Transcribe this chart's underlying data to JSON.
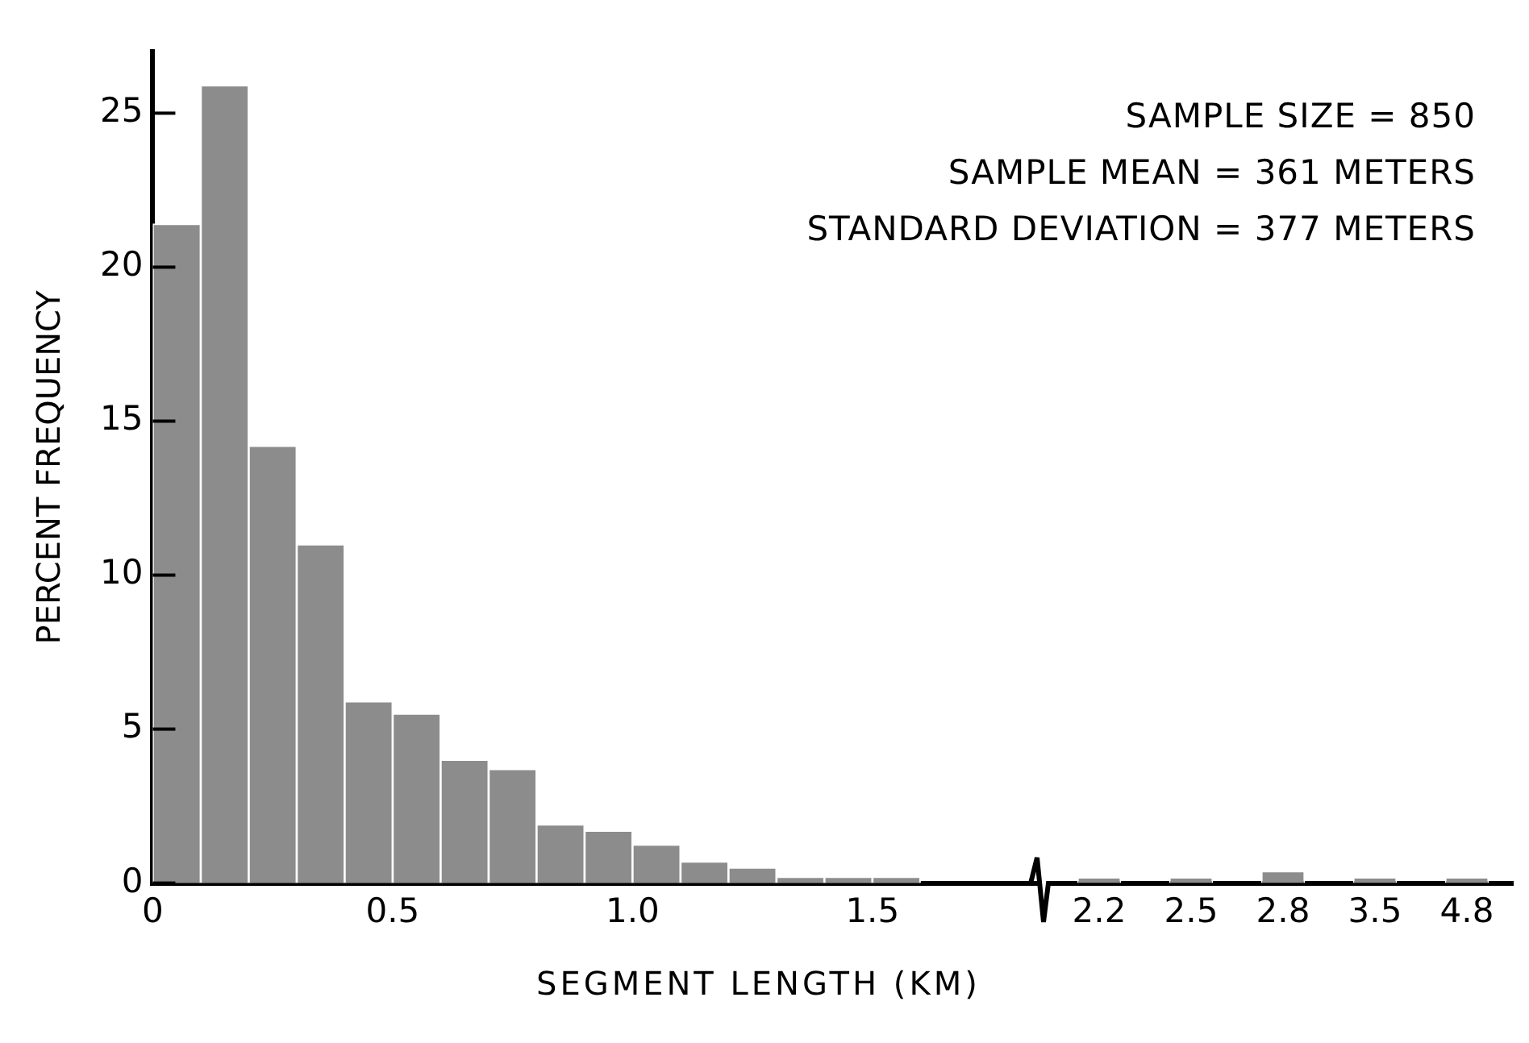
{
  "chart_data": [
    {
      "type": "histogram",
      "xlabel": "SEGMENT LENGTH (KM)",
      "ylabel": "PERCENT FREQUENCY",
      "annotations": [
        "SAMPLE SIZE = 850",
        "SAMPLE MEAN = 361 METERS",
        "STANDARD DEVIATION = 377 METERS"
      ],
      "bins": [
        0,
        0.1,
        0.2,
        0.3,
        0.4,
        0.5,
        0.6,
        0.7,
        0.8,
        0.9,
        1.0,
        1.1,
        1.2,
        1.3,
        1.4,
        1.5,
        1.6
      ],
      "values": [
        21.4,
        25.9,
        14.2,
        11.0,
        5.9,
        5.5,
        4.0,
        3.7,
        1.9,
        1.7,
        1.25,
        0.7,
        0.5,
        0.2,
        0.2,
        0.2
      ],
      "color": "#8c8c8c",
      "xlim": [
        0,
        1.85
      ],
      "xticks": [
        0,
        0.5,
        {
          "value": 1,
          "label": "1.0"
        },
        1.5
      ],
      "ylim": [
        0,
        27
      ],
      "yticks": [
        0,
        5,
        10,
        15,
        20,
        25
      ],
      "grid": false
    },
    {
      "type": "bar",
      "categories": [
        "2.2",
        "2.5",
        "2.8",
        "3.5",
        "4.8"
      ],
      "values": [
        0.2,
        0.2,
        0.4,
        0.2,
        0.2
      ],
      "color": "#8c8c8c",
      "ylim": [
        0,
        25
      ],
      "yticks": [
        0,
        5,
        10,
        15,
        20,
        25
      ],
      "tick_labels": "x",
      "grid": false
    }
  ]
}
